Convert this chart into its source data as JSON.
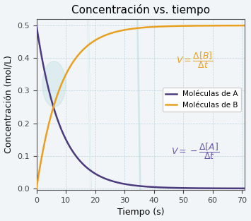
{
  "title": "Concentración vs. tiempo",
  "xlabel": "Tiempo (s)",
  "ylabel": "Concentración (mol/L)",
  "xlim": [
    0,
    71
  ],
  "ylim": [
    -0.005,
    0.52
  ],
  "xticks": [
    0,
    10,
    20,
    30,
    40,
    50,
    60,
    70
  ],
  "yticks": [
    0.0,
    0.1,
    0.2,
    0.3,
    0.4,
    0.5
  ],
  "A_color": "#4B3A7E",
  "B_color": "#E8A020",
  "A_label": "Moléculas de A",
  "B_label": "Moléculas de B",
  "A_init": 0.5,
  "B_max": 0.5,
  "decay_k": 0.12,
  "eq_B_color": "#E8A020",
  "eq_A_color": "#6A5AAD",
  "background_color": "#f2f5f8",
  "grid_color": "#b8d0dc",
  "title_fontsize": 11,
  "label_fontsize": 9,
  "tick_fontsize": 8,
  "legend_fontsize": 7.5,
  "eq_fontsize": 9,
  "flask_color": "#b8dce0",
  "flask_alpha": 0.45
}
